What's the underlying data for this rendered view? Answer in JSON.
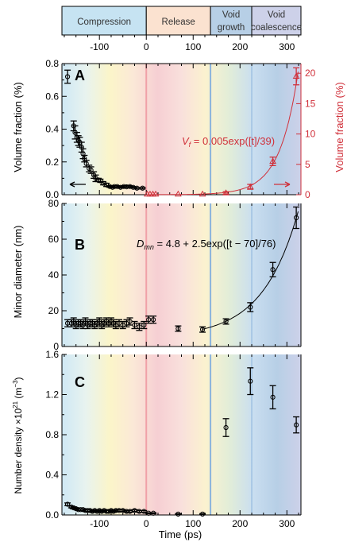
{
  "phases": {
    "labels": [
      {
        "lines": [
          "Compression"
        ],
        "t0": -180,
        "t1": 0,
        "color": "#c6e3f2"
      },
      {
        "lines": [
          "Release"
        ],
        "t0": 0,
        "t1": 137,
        "color": "#fbe2d0"
      },
      {
        "lines": [
          "Void",
          "growth"
        ],
        "t0": 137,
        "t1": 225,
        "color": "#b7cfe6"
      },
      {
        "lines": [
          "Void",
          "coalescence"
        ],
        "t0": 225,
        "t1": 330,
        "color": "#cdd1e9"
      }
    ],
    "ticks": [
      "-100",
      "0",
      "100",
      "200",
      "300"
    ]
  },
  "colors": {
    "axis": "#000000",
    "red": "#d0303a",
    "background_gradient": [
      "#cfe8f5",
      "#e8f3ef",
      "#fbf5c9",
      "#fbe8d7",
      "#f6cfd3",
      "#f9e0dc",
      "#fbf2cf",
      "#e2edd8",
      "#c9def0",
      "#b7cfe6",
      "#cdd1e9"
    ],
    "t0_line": "#f0a0a8",
    "phase_line": "#8ab3dc"
  },
  "chart_data": [
    {
      "type": "scatter",
      "panel": "A",
      "xlim": [
        -180,
        330
      ],
      "ylim": [
        0,
        0.8
      ],
      "y2lim": [
        0,
        21.6
      ],
      "xlabel": "",
      "ylabel": "Volume fraction (%)",
      "y2label": "Volume fraction (%)",
      "yticks": [
        "0.0",
        "0.2",
        "0.4",
        "0.6",
        "0.8"
      ],
      "y2ticks": [
        "0",
        "5",
        "10",
        "15",
        "20"
      ],
      "annotation": "V",
      "annotation_sub": "f",
      "annotation_rest": " = 0.005exp([t]/39)",
      "series": [
        {
          "axis": "left",
          "marker": "circle",
          "x": [
            -168,
            -155,
            -152,
            -148,
            -145,
            -142,
            -138,
            -135,
            -132,
            -128,
            -122,
            -118,
            -112,
            -108,
            -102,
            -98,
            -92,
            -85,
            -78,
            -72,
            -68,
            -62,
            -55,
            -48,
            -42,
            -35,
            -28,
            -20,
            -8
          ],
          "y": [
            0.72,
            0.42,
            0.38,
            0.35,
            0.33,
            0.32,
            0.29,
            0.25,
            0.22,
            0.19,
            0.16,
            0.15,
            0.12,
            0.1,
            0.09,
            0.085,
            0.07,
            0.06,
            0.05,
            0.045,
            0.05,
            0.05,
            0.045,
            0.05,
            0.048,
            0.05,
            0.045,
            0.04,
            0.04
          ],
          "yerr": [
            0.04,
            0.03,
            0.04,
            0.03,
            0.03,
            0.03,
            0.03,
            0.03,
            0.02,
            0.02,
            0.02,
            0.02,
            0.02,
            0.02,
            0.01,
            0.01,
            0.01,
            0.01,
            0.005,
            0.005,
            0.005,
            0.005,
            0.005,
            0.005,
            0.005,
            0.005,
            0.005,
            0.005,
            0.005
          ]
        },
        {
          "axis": "right",
          "marker": "triangle",
          "x": [
            2,
            8,
            14,
            20,
            68,
            120,
            170,
            222,
            270,
            320
          ],
          "y": [
            0.1,
            0.1,
            0.1,
            0.1,
            0.1,
            0.1,
            0.3,
            1.3,
            5.5,
            19.5
          ],
          "yerr": [
            0,
            0,
            0,
            0,
            0,
            0,
            0.2,
            0.4,
            0.7,
            1.4
          ]
        }
      ],
      "fit": {
        "axis": "right",
        "amp": 0.005,
        "tau": 39,
        "t0": 0,
        "x_start": 0,
        "x_end": 325
      }
    },
    {
      "type": "scatter",
      "panel": "B",
      "xlim": [
        -180,
        330
      ],
      "ylim": [
        0,
        80
      ],
      "xlabel": "",
      "ylabel": "Minor diameter (nm)",
      "yticks": [
        "0",
        "20",
        "40",
        "60",
        "80"
      ],
      "annotation": "D",
      "annotation_sub": "mn",
      "annotation_rest": " = 4.8 + 2.5exp([t − 70]/76)",
      "series": [
        {
          "marker": "circle",
          "x": [
            -168,
            -160,
            -155,
            -150,
            -145,
            -140,
            -135,
            -130,
            -125,
            -120,
            -115,
            -110,
            -105,
            -100,
            -95,
            -90,
            -85,
            -80,
            -75,
            -70,
            -65,
            -58,
            -50,
            -42,
            -35,
            -25,
            -15,
            -5,
            5,
            15,
            68,
            120,
            170,
            222,
            270,
            320
          ],
          "y": [
            13,
            13,
            14,
            12,
            13,
            13,
            12,
            14,
            12,
            13,
            13,
            12,
            13,
            14,
            12,
            13,
            14,
            13,
            14,
            13,
            12,
            13,
            12,
            13,
            14,
            12,
            11,
            12,
            15,
            15,
            10,
            9.5,
            14,
            22,
            43,
            72
          ],
          "yerr": [
            2,
            2,
            2,
            2,
            2,
            2,
            2,
            2,
            2,
            2,
            2,
            2,
            2,
            2,
            2,
            2,
            2,
            2,
            2,
            2,
            2,
            2,
            2,
            2,
            2,
            2,
            2,
            2,
            2,
            2,
            1.5,
            1.5,
            1.5,
            2.5,
            4,
            6
          ]
        }
      ],
      "fit": {
        "const": 4.8,
        "amp": 2.5,
        "tau": 76,
        "t0": 70,
        "x_start": 120,
        "x_end": 325
      }
    },
    {
      "type": "scatter",
      "panel": "C",
      "xlim": [
        -180,
        330
      ],
      "ylim": [
        0,
        1.8
      ],
      "xlabel": "Time (ps)",
      "ylabel": "Number density ×10",
      "ylabel_sup": "21",
      "ylabel_rest": " (m",
      "ylabel_sup2": "−3",
      "ylabel_end": ")",
      "yticks": [
        "0.0",
        "0.4",
        "0.8",
        "1.2",
        "1.6"
      ],
      "xticks": [
        "-100",
        "0",
        "100",
        "200",
        "300"
      ],
      "series": [
        {
          "marker": "circle",
          "x": [
            -168,
            -160,
            -155,
            -150,
            -145,
            -140,
            -135,
            -130,
            -125,
            -120,
            -115,
            -110,
            -105,
            -100,
            -95,
            -90,
            -85,
            -80,
            -75,
            -70,
            -65,
            -58,
            -50,
            -42,
            -35,
            -25,
            -15,
            -5,
            5,
            15,
            68,
            120,
            170,
            222,
            270,
            320
          ],
          "y": [
            0.12,
            0.09,
            0.08,
            0.07,
            0.06,
            0.06,
            0.06,
            0.05,
            0.05,
            0.05,
            0.04,
            0.05,
            0.04,
            0.05,
            0.04,
            0.05,
            0.04,
            0.04,
            0.05,
            0.04,
            0.05,
            0.05,
            0.05,
            0.04,
            0.04,
            0.05,
            0.04,
            0.04,
            0.02,
            0.02,
            0.01,
            0.01,
            0.98,
            1.5,
            1.32,
            1.01
          ],
          "yerr": [
            0.015,
            0.01,
            0.01,
            0.01,
            0.01,
            0.01,
            0.01,
            0.01,
            0.01,
            0.01,
            0.01,
            0.01,
            0.01,
            0.01,
            0.01,
            0.01,
            0.01,
            0.01,
            0.01,
            0.01,
            0.01,
            0.01,
            0.01,
            0.01,
            0.01,
            0.01,
            0.01,
            0.01,
            0.005,
            0.005,
            0.005,
            0.005,
            0.1,
            0.15,
            0.13,
            0.09
          ]
        }
      ]
    }
  ]
}
